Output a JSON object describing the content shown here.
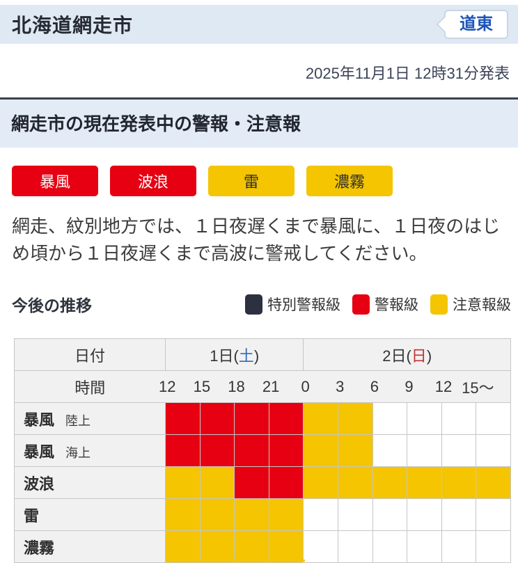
{
  "colors": {
    "special_warning": "#2c303f",
    "warning": "#e60012",
    "advisory": "#f4c500",
    "saturday_blue": "#2e6db8",
    "sunday_red": "#bf3230"
  },
  "header": {
    "title": "北海道網走市",
    "region_link": "道東"
  },
  "published_datetime": "2025年11月1日 12時31分発表",
  "section_title": "網走市の現在発表中の警報・注意報",
  "warning_badges": [
    {
      "label": "暴風",
      "level": "warning"
    },
    {
      "label": "波浪",
      "level": "warning"
    },
    {
      "label": "雷",
      "level": "advisory"
    },
    {
      "label": "濃霧",
      "level": "advisory"
    }
  ],
  "description": "網走、紋別地方では、１日夜遅くまで暴風に、１日夜のはじめ頃から１日夜遅くまで高波に警戒してください。",
  "forecast": {
    "heading": "今後の推移",
    "legend": [
      {
        "label": "特別警報級",
        "color": "#2c303f"
      },
      {
        "label": "警報級",
        "color": "#e60012"
      },
      {
        "label": "注意報級",
        "color": "#f4c500"
      }
    ],
    "table": {
      "date_header": "日付",
      "time_header": "時間",
      "dates": [
        {
          "prefix": "1日(",
          "day": "土",
          "suffix": ")",
          "day_color": "#2e6db8",
          "span": 4
        },
        {
          "prefix": "2日(",
          "day": "日",
          "suffix": ")",
          "day_color": "#bf3230",
          "span": 6
        }
      ],
      "times": [
        "12",
        "15",
        "18",
        "21",
        "0",
        "3",
        "6",
        "9",
        "12",
        "15～"
      ],
      "rows": [
        {
          "label": "暴風",
          "sublabel": "陸上",
          "cells": [
            "warning",
            "warning",
            "warning",
            "warning",
            "advisory",
            "advisory",
            "none",
            "none",
            "none",
            "none"
          ]
        },
        {
          "label": "暴風",
          "sublabel": "海上",
          "cells": [
            "warning",
            "warning",
            "warning",
            "warning",
            "advisory",
            "advisory",
            "none",
            "none",
            "none",
            "none"
          ]
        },
        {
          "label": "波浪",
          "sublabel": "",
          "cells": [
            "advisory",
            "advisory",
            "warning",
            "warning",
            "advisory",
            "advisory",
            "advisory",
            "advisory",
            "advisory",
            "advisory"
          ]
        },
        {
          "label": "雷",
          "sublabel": "",
          "cells": [
            "advisory",
            "advisory",
            "advisory",
            "advisory",
            "none",
            "none",
            "none",
            "none",
            "none",
            "none"
          ]
        },
        {
          "label": "濃霧",
          "sublabel": "",
          "cells": [
            "advisory",
            "advisory",
            "advisory",
            "advisory",
            "none",
            "none",
            "none",
            "none",
            "none",
            "none"
          ]
        }
      ]
    }
  }
}
